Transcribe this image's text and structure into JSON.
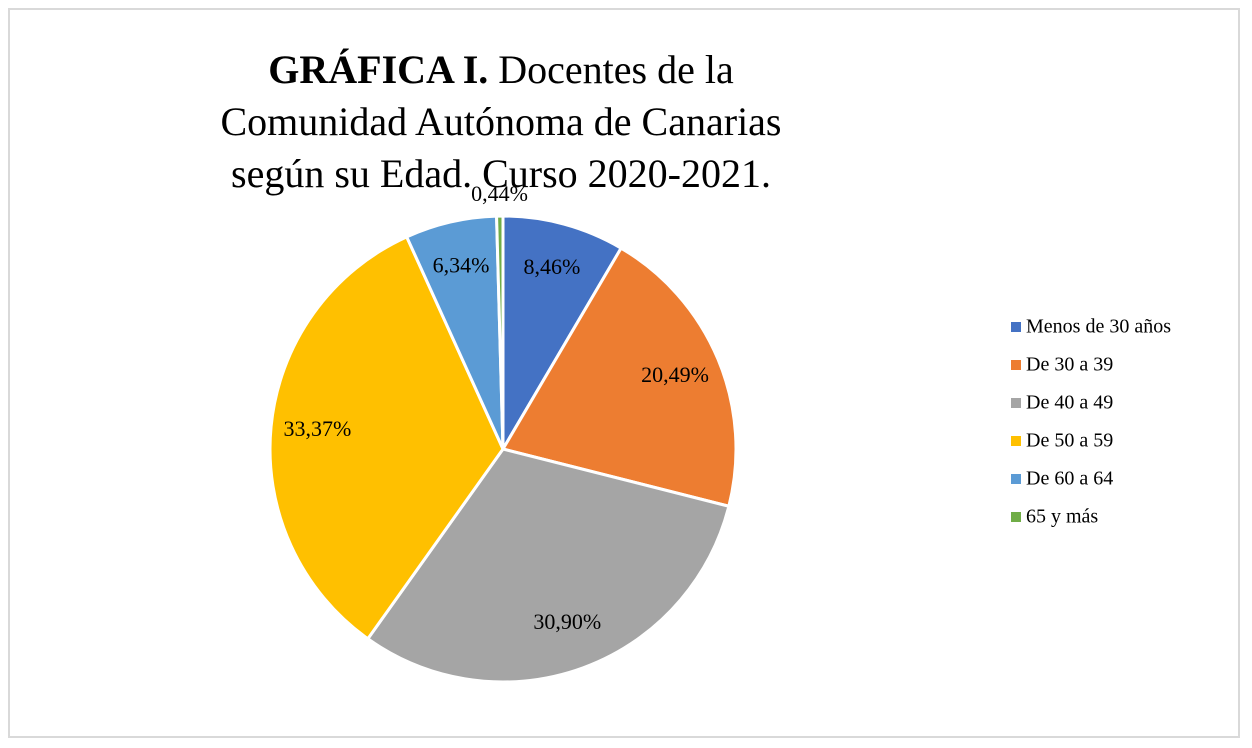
{
  "chart_data": {
    "type": "pie",
    "title_label": "GRÁFICA I.",
    "title": "Docentes de la Comunidad Autónoma de Canarias según su Edad. Curso 2020-2021.",
    "categories": [
      "Menos de 30 años",
      "De 30 a 39",
      "De 40 a 49",
      "De 50 a 59",
      "De 60 a 64",
      "65 y más"
    ],
    "values": [
      8.46,
      20.49,
      30.9,
      33.37,
      6.34,
      0.44
    ],
    "value_labels": [
      "8,46%",
      "20,49%",
      "30,90%",
      "33,37%",
      "6,34%",
      "0,44%"
    ],
    "colors": [
      "#4472c4",
      "#ed7d31",
      "#a5a5a5",
      "#ffc000",
      "#5b9bd5",
      "#70ad47"
    ],
    "legend": "right"
  }
}
